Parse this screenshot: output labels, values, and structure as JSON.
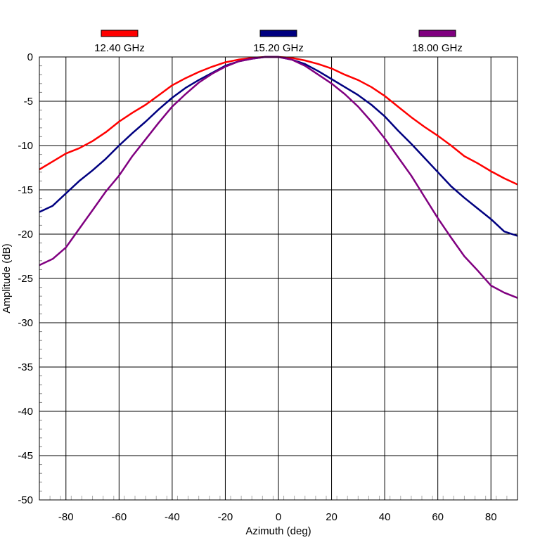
{
  "chart_data": {
    "type": "line",
    "xlabel": "Azimuth (deg)",
    "ylabel": "Amplitude (dB)",
    "xlim": [
      -90,
      90
    ],
    "ylim": [
      -50,
      0
    ],
    "xticks": [
      -80,
      -60,
      -40,
      -20,
      0,
      20,
      40,
      60,
      80
    ],
    "xtick_labels": [
      "-80",
      "-60",
      "-40",
      "-20",
      "0",
      "20",
      "40",
      "60",
      "80"
    ],
    "yticks": [
      0,
      -5,
      -10,
      -15,
      -20,
      -25,
      -30,
      -35,
      -40,
      -45,
      -50
    ],
    "ytick_labels": [
      "0",
      "-5",
      "-10",
      "-15",
      "-20",
      "-25",
      "-30",
      "-35",
      "-40",
      "-45",
      "-50"
    ],
    "grid": true,
    "legend_position": "top",
    "series": [
      {
        "name": "12.40 GHz",
        "color": "#ff0000",
        "x": [
          -90,
          -85,
          -80,
          -75,
          -70,
          -65,
          -60,
          -55,
          -50,
          -45,
          -40,
          -35,
          -30,
          -25,
          -20,
          -15,
          -10,
          -5,
          0,
          5,
          10,
          15,
          20,
          25,
          30,
          35,
          40,
          45,
          50,
          55,
          60,
          65,
          70,
          75,
          80,
          85,
          90
        ],
        "y": [
          -12.7,
          -11.8,
          -10.9,
          -10.3,
          -9.5,
          -8.5,
          -7.3,
          -6.3,
          -5.4,
          -4.3,
          -3.2,
          -2.4,
          -1.7,
          -1.1,
          -0.6,
          -0.3,
          -0.1,
          0,
          0,
          -0.1,
          -0.4,
          -0.8,
          -1.3,
          -2.0,
          -2.6,
          -3.4,
          -4.4,
          -5.6,
          -6.8,
          -7.9,
          -8.9,
          -10.0,
          -11.2,
          -12.0,
          -12.9,
          -13.7,
          -14.4
        ]
      },
      {
        "name": "15.20 GHz",
        "color": "#000080",
        "x": [
          -90,
          -85,
          -80,
          -75,
          -70,
          -65,
          -60,
          -55,
          -50,
          -45,
          -40,
          -35,
          -30,
          -25,
          -20,
          -15,
          -10,
          -5,
          0,
          5,
          10,
          15,
          20,
          25,
          30,
          35,
          40,
          45,
          50,
          55,
          60,
          65,
          70,
          75,
          80,
          85,
          90
        ],
        "y": [
          -17.5,
          -16.8,
          -15.4,
          -14.0,
          -12.8,
          -11.5,
          -10.0,
          -8.6,
          -7.3,
          -5.9,
          -4.6,
          -3.5,
          -2.6,
          -1.8,
          -1.0,
          -0.5,
          -0.2,
          0,
          0,
          -0.3,
          -0.8,
          -1.6,
          -2.5,
          -3.4,
          -4.3,
          -5.4,
          -6.7,
          -8.3,
          -9.8,
          -11.4,
          -13.0,
          -14.6,
          -15.9,
          -17.1,
          -18.3,
          -19.7,
          -20.2
        ]
      },
      {
        "name": "18.00 GHz",
        "color": "#800080",
        "x": [
          -90,
          -85,
          -80,
          -75,
          -70,
          -65,
          -60,
          -55,
          -50,
          -45,
          -40,
          -35,
          -30,
          -25,
          -20,
          -15,
          -10,
          -5,
          0,
          5,
          10,
          15,
          20,
          25,
          30,
          35,
          40,
          45,
          50,
          55,
          60,
          65,
          70,
          75,
          80,
          85,
          90
        ],
        "y": [
          -23.5,
          -22.8,
          -21.5,
          -19.4,
          -17.3,
          -15.2,
          -13.4,
          -11.2,
          -9.3,
          -7.4,
          -5.6,
          -4.2,
          -2.9,
          -1.9,
          -1.1,
          -0.5,
          -0.2,
          0,
          0,
          -0.3,
          -1.0,
          -2.0,
          -3.0,
          -4.2,
          -5.6,
          -7.3,
          -9.2,
          -11.3,
          -13.4,
          -15.8,
          -18.2,
          -20.4,
          -22.5,
          -24.1,
          -25.8,
          -26.6,
          -27.2
        ]
      }
    ]
  }
}
